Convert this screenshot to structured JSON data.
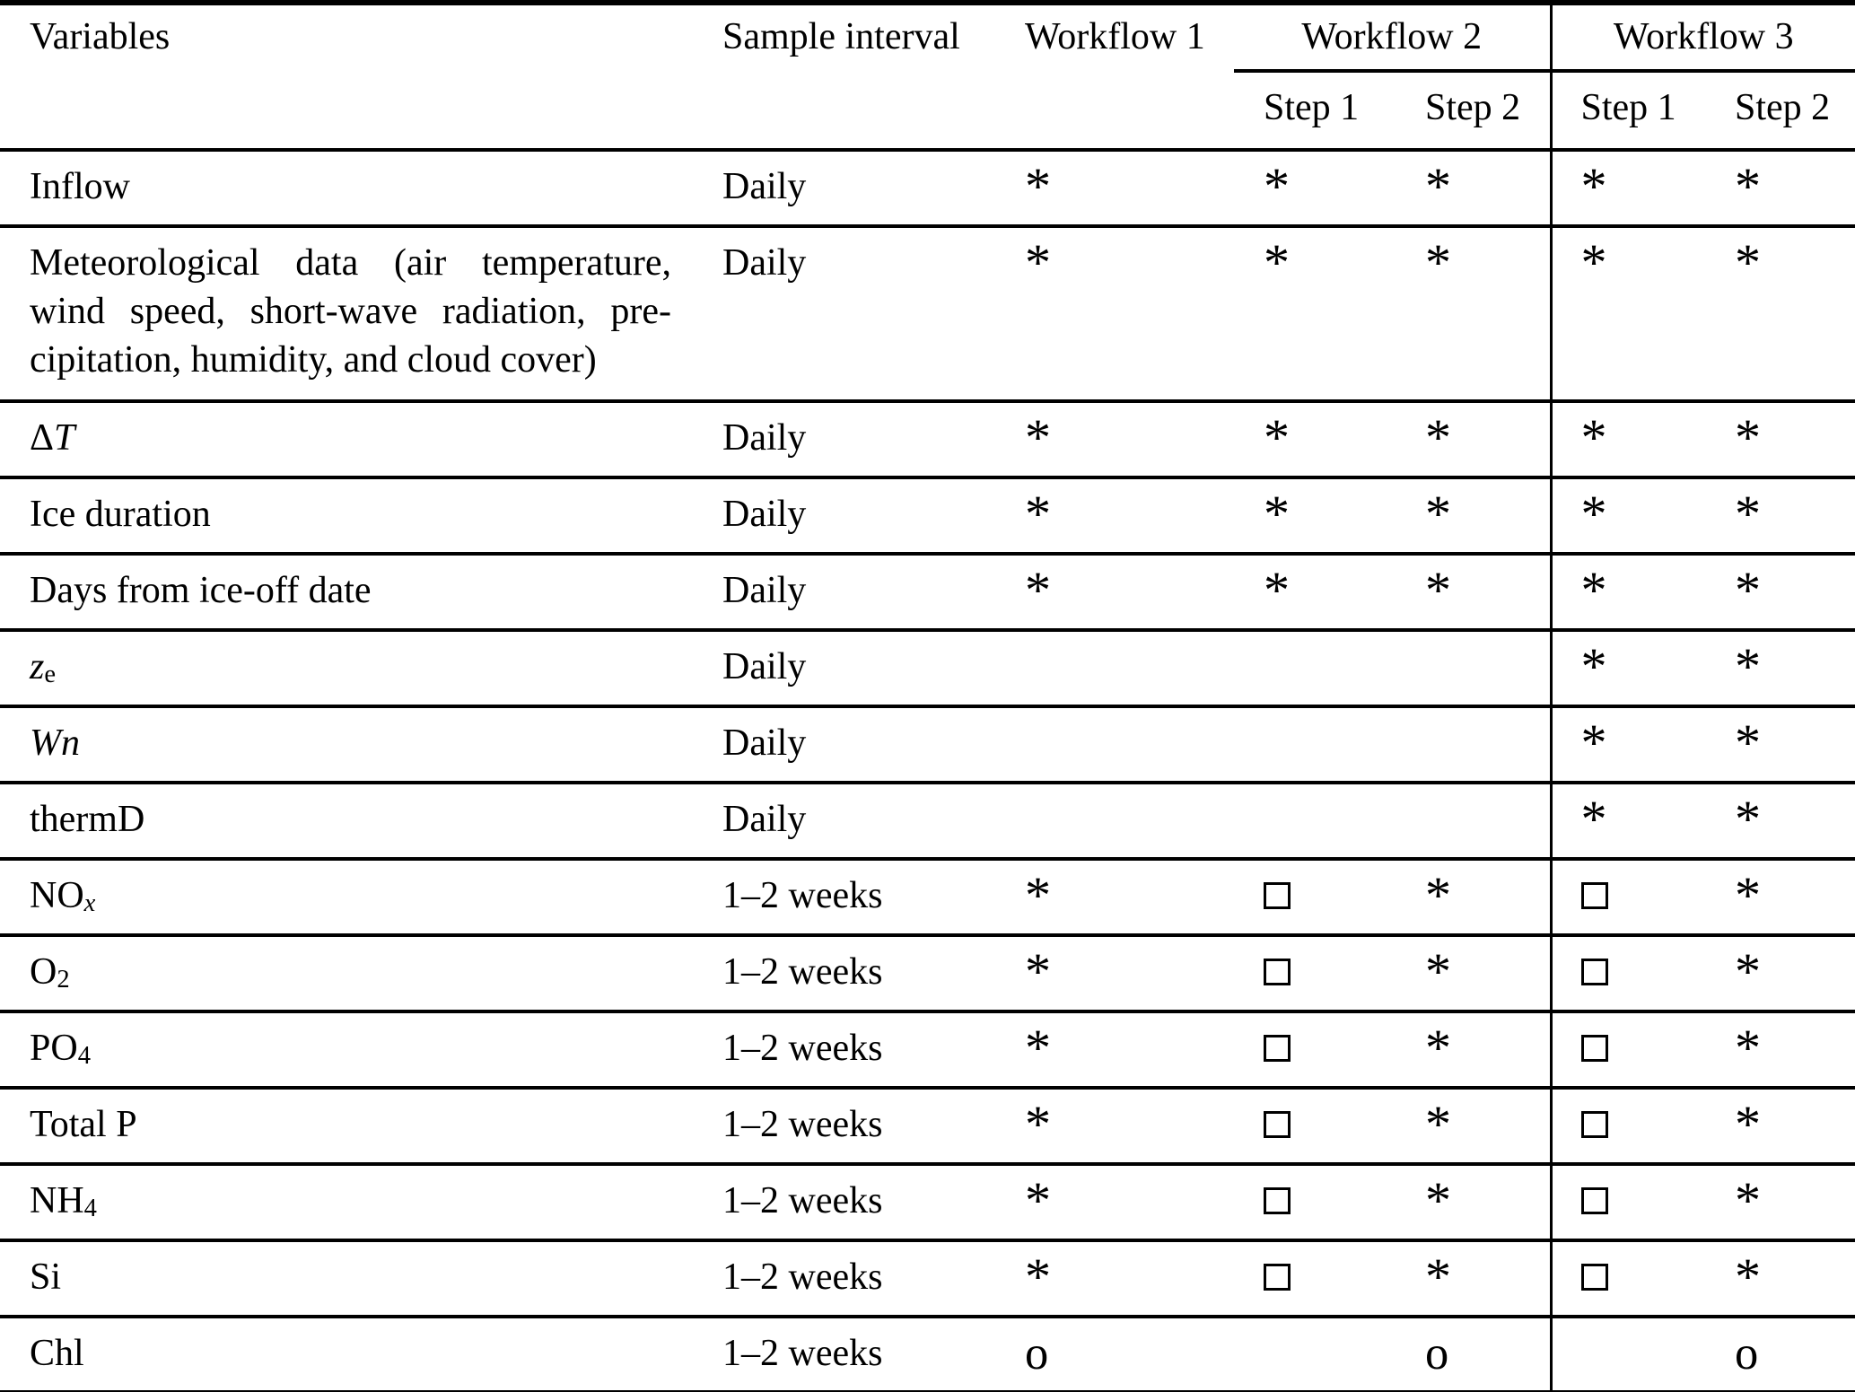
{
  "table": {
    "header": {
      "variables": "Variables",
      "sample_interval": "Sample interval",
      "workflow1": "Workflow 1",
      "workflow2": "Workflow 2",
      "workflow3": "Workflow 3",
      "step1": "Step 1",
      "step2": "Step 2"
    },
    "symbols": {
      "star": "*",
      "square": "open-square",
      "circle": "o"
    },
    "columns": [
      "workflow1",
      "workflow2-step1",
      "workflow2-step2",
      "workflow3-step1",
      "workflow3-step2"
    ],
    "rows": [
      {
        "name": "inflow",
        "variable": [
          {
            "t": "Inflow"
          }
        ],
        "interval": "Daily",
        "cells": [
          "star",
          "star",
          "star",
          "star",
          "star"
        ]
      },
      {
        "name": "meteorological-data",
        "tall": true,
        "variable_lines": [
          [
            {
              "t": "Meteorological data (air temperature,"
            }
          ],
          [
            {
              "t": "wind speed, short-wave radiation, pre-"
            }
          ],
          [
            {
              "t": "cipitation, humidity, and cloud cover)"
            }
          ]
        ],
        "interval": "Daily",
        "cells": [
          "star",
          "star",
          "star",
          "star",
          "star"
        ]
      },
      {
        "name": "delta-t",
        "variable": [
          {
            "t": "Δ"
          },
          {
            "t": "T",
            "i": true
          }
        ],
        "interval": "Daily",
        "cells": [
          "star",
          "star",
          "star",
          "star",
          "star"
        ]
      },
      {
        "name": "ice-duration",
        "variable": [
          {
            "t": "Ice duration"
          }
        ],
        "interval": "Daily",
        "cells": [
          "star",
          "star",
          "star",
          "star",
          "star"
        ]
      },
      {
        "name": "days-from-ice-off-date",
        "variable": [
          {
            "t": "Days from ice-off date"
          }
        ],
        "interval": "Daily",
        "cells": [
          "star",
          "star",
          "star",
          "star",
          "star"
        ]
      },
      {
        "name": "ze",
        "variable": [
          {
            "t": "z",
            "i": true
          },
          {
            "t": "e",
            "sub": true
          }
        ],
        "interval": "Daily",
        "cells": [
          "",
          "",
          "",
          "star",
          "star"
        ]
      },
      {
        "name": "wn",
        "variable": [
          {
            "t": "Wn",
            "i": true
          }
        ],
        "interval": "Daily",
        "cells": [
          "",
          "",
          "",
          "star",
          "star"
        ]
      },
      {
        "name": "thermd",
        "variable": [
          {
            "t": "thermD"
          }
        ],
        "interval": "Daily",
        "cells": [
          "",
          "",
          "",
          "star",
          "star"
        ]
      },
      {
        "name": "nox",
        "variable": [
          {
            "t": "NO"
          },
          {
            "t": "x",
            "sub": true,
            "i": true
          }
        ],
        "interval": "1–2 weeks",
        "cells": [
          "star",
          "square",
          "star",
          "square",
          "star"
        ]
      },
      {
        "name": "o2",
        "variable": [
          {
            "t": "O"
          },
          {
            "t": "2",
            "sub": true
          }
        ],
        "interval": "1–2 weeks",
        "cells": [
          "star",
          "square",
          "star",
          "square",
          "star"
        ]
      },
      {
        "name": "po4",
        "variable": [
          {
            "t": "PO"
          },
          {
            "t": "4",
            "sub": true
          }
        ],
        "interval": "1–2 weeks",
        "cells": [
          "star",
          "square",
          "star",
          "square",
          "star"
        ]
      },
      {
        "name": "total-p",
        "variable": [
          {
            "t": "Total P"
          }
        ],
        "interval": "1–2 weeks",
        "cells": [
          "star",
          "square",
          "star",
          "square",
          "star"
        ]
      },
      {
        "name": "nh4",
        "variable": [
          {
            "t": "NH"
          },
          {
            "t": "4",
            "sub": true
          }
        ],
        "interval": "1–2 weeks",
        "cells": [
          "star",
          "square",
          "star",
          "square",
          "star"
        ]
      },
      {
        "name": "si",
        "variable": [
          {
            "t": "Si"
          }
        ],
        "interval": "1–2 weeks",
        "cells": [
          "star",
          "square",
          "star",
          "square",
          "star"
        ]
      },
      {
        "name": "chl",
        "variable": [
          {
            "t": "Chl"
          }
        ],
        "interval": "1–2 weeks",
        "cells": [
          "circle",
          "",
          "circle",
          "",
          "circle"
        ]
      }
    ]
  }
}
